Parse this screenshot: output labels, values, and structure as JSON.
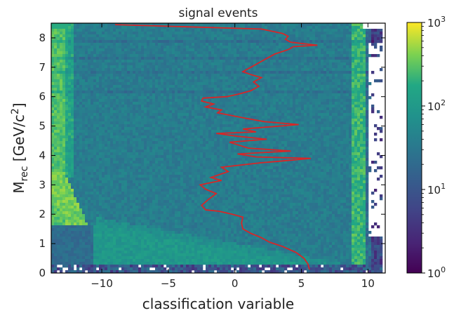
{
  "chart_data": {
    "type": "heatmap",
    "title": "signal events",
    "xlabel": "classification variable",
    "ylabel_main": "M",
    "ylabel_sub": "rec",
    "ylabel_units_open": " [GeV/c",
    "ylabel_units_sup": "2",
    "ylabel_units_close": "]",
    "xlim": [
      -13.8,
      11.3
    ],
    "ylim": [
      0,
      8.5
    ],
    "x_ticks": [
      {
        "value": -10,
        "label": "−10"
      },
      {
        "value": -5,
        "label": "−5"
      },
      {
        "value": 0,
        "label": "0"
      },
      {
        "value": 5,
        "label": "5"
      },
      {
        "value": 10,
        "label": "10"
      }
    ],
    "y_ticks": [
      {
        "value": 0,
        "label": "0"
      },
      {
        "value": 1,
        "label": "1"
      },
      {
        "value": 2,
        "label": "2"
      },
      {
        "value": 3,
        "label": "3"
      },
      {
        "value": 4,
        "label": "4"
      },
      {
        "value": 5,
        "label": "5"
      },
      {
        "value": 6,
        "label": "6"
      },
      {
        "value": 7,
        "label": "7"
      },
      {
        "value": 8,
        "label": "8"
      }
    ],
    "colorbar": {
      "scale": "log",
      "range": [
        1,
        1000
      ],
      "colormap": "viridis",
      "ticks": [
        {
          "value": 1,
          "base": "10",
          "exp": "0"
        },
        {
          "value": 10,
          "base": "10",
          "exp": "1"
        },
        {
          "value": 100,
          "base": "10",
          "exp": "2"
        },
        {
          "value": 1000,
          "base": "10",
          "exp": "3"
        }
      ]
    },
    "overlay_line": {
      "color": "#d62728",
      "points": [
        [
          5.6,
          0.12
        ],
        [
          5.5,
          0.3
        ],
        [
          5.2,
          0.5
        ],
        [
          4.6,
          0.7
        ],
        [
          3.6,
          0.9
        ],
        [
          2.6,
          1.05
        ],
        [
          2.0,
          1.2
        ],
        [
          1.2,
          1.35
        ],
        [
          0.6,
          1.5
        ],
        [
          0.5,
          1.7
        ],
        [
          0.6,
          1.9
        ],
        [
          -0.2,
          2.0
        ],
        [
          -1.2,
          2.1
        ],
        [
          -2.2,
          2.15
        ],
        [
          -2.5,
          2.3
        ],
        [
          -2.0,
          2.5
        ],
        [
          -1.4,
          2.7
        ],
        [
          -2.2,
          2.85
        ],
        [
          -2.6,
          3.0
        ],
        [
          -1.0,
          3.15
        ],
        [
          -1.8,
          3.25
        ],
        [
          -0.5,
          3.45
        ],
        [
          -1.0,
          3.6
        ],
        [
          2.0,
          3.75
        ],
        [
          3.3,
          3.8
        ],
        [
          5.7,
          3.9
        ],
        [
          1.6,
          3.95
        ],
        [
          0.2,
          4.05
        ],
        [
          4.2,
          4.15
        ],
        [
          1.0,
          4.25
        ],
        [
          0.3,
          4.35
        ],
        [
          -0.4,
          4.45
        ],
        [
          2.4,
          4.55
        ],
        [
          0.2,
          4.65
        ],
        [
          -1.4,
          4.75
        ],
        [
          1.6,
          4.8
        ],
        [
          0.6,
          4.9
        ],
        [
          4.8,
          5.05
        ],
        [
          2.2,
          5.15
        ],
        [
          0.4,
          5.3
        ],
        [
          -1.3,
          5.45
        ],
        [
          -1.0,
          5.55
        ],
        [
          -2.2,
          5.65
        ],
        [
          -1.6,
          5.75
        ],
        [
          -2.5,
          5.85
        ],
        [
          -2.4,
          5.95
        ],
        [
          -0.6,
          6.0
        ],
        [
          0.4,
          6.1
        ],
        [
          1.2,
          6.2
        ],
        [
          1.8,
          6.35
        ],
        [
          1.4,
          6.5
        ],
        [
          2.0,
          6.65
        ],
        [
          1.2,
          6.75
        ],
        [
          0.6,
          6.85
        ],
        [
          1.2,
          7.0
        ],
        [
          2.0,
          7.2
        ],
        [
          3.0,
          7.45
        ],
        [
          4.0,
          7.6
        ],
        [
          4.4,
          7.7
        ],
        [
          6.2,
          7.75
        ],
        [
          4.2,
          7.85
        ],
        [
          3.8,
          7.95
        ],
        [
          4.0,
          8.05
        ],
        [
          3.6,
          8.15
        ],
        [
          2.0,
          8.3
        ],
        [
          -9.0,
          8.45
        ]
      ]
    }
  }
}
